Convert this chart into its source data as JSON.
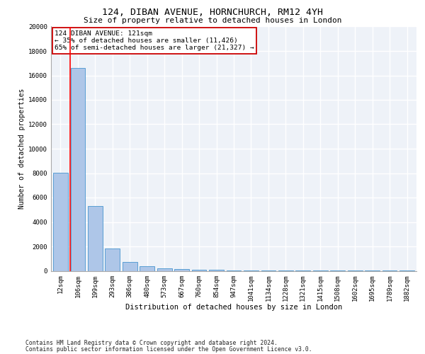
{
  "title1": "124, DIBAN AVENUE, HORNCHURCH, RM12 4YH",
  "title2": "Size of property relative to detached houses in London",
  "xlabel": "Distribution of detached houses by size in London",
  "ylabel": "Number of detached properties",
  "bins": [
    "12sqm",
    "106sqm",
    "199sqm",
    "293sqm",
    "386sqm",
    "480sqm",
    "573sqm",
    "667sqm",
    "760sqm",
    "854sqm",
    "947sqm",
    "1041sqm",
    "1134sqm",
    "1228sqm",
    "1321sqm",
    "1415sqm",
    "1508sqm",
    "1602sqm",
    "1695sqm",
    "1789sqm",
    "1882sqm"
  ],
  "values": [
    8050,
    16600,
    5300,
    1800,
    700,
    350,
    200,
    120,
    80,
    60,
    45,
    35,
    28,
    20,
    15,
    12,
    10,
    8,
    6,
    5,
    4
  ],
  "bar_color": "#aec6e8",
  "bar_edge_color": "#5a9fd4",
  "red_line_x": 0.57,
  "annotation_line1": "124 DIBAN AVENUE: 121sqm",
  "annotation_line2": "← 35% of detached houses are smaller (11,426)",
  "annotation_line3": "65% of semi-detached houses are larger (21,327) →",
  "annotation_box_color": "#ffffff",
  "annotation_box_edge_color": "#cc0000",
  "ylim_max": 20000,
  "yticks": [
    0,
    2000,
    4000,
    6000,
    8000,
    10000,
    12000,
    14000,
    16000,
    18000,
    20000
  ],
  "footer1": "Contains HM Land Registry data © Crown copyright and database right 2024.",
  "footer2": "Contains public sector information licensed under the Open Government Licence v3.0.",
  "bg_color": "#eef2f8",
  "grid_color": "#ffffff",
  "title1_fontsize": 9.5,
  "title2_fontsize": 8,
  "axis_label_fontsize": 7,
  "tick_fontsize": 6.5,
  "annotation_fontsize": 6.8,
  "footer_fontsize": 5.8
}
